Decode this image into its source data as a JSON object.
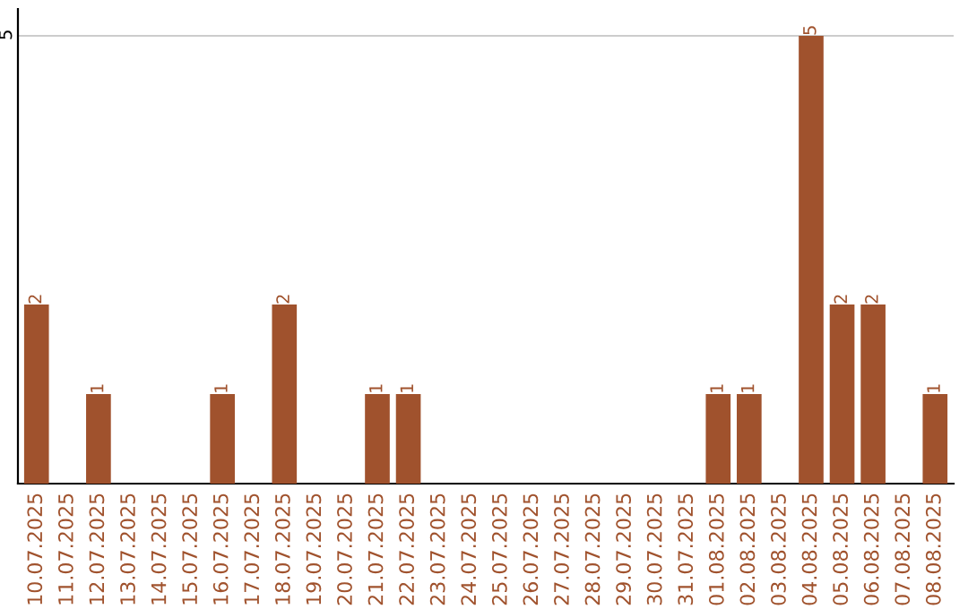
{
  "chart_data": {
    "type": "bar",
    "categories": [
      "10.07.2025",
      "11.07.2025",
      "12.07.2025",
      "13.07.2025",
      "14.07.2025",
      "15.07.2025",
      "16.07.2025",
      "17.07.2025",
      "18.07.2025",
      "19.07.2025",
      "20.07.2025",
      "21.07.2025",
      "22.07.2025",
      "23.07.2025",
      "24.07.2025",
      "25.07.2025",
      "26.07.2025",
      "27.07.2025",
      "28.07.2025",
      "29.07.2025",
      "30.07.2025",
      "31.07.2025",
      "01.08.2025",
      "02.08.2025",
      "03.08.2025",
      "04.08.2025",
      "05.08.2025",
      "06.08.2025",
      "07.08.2025",
      "08.08.2025"
    ],
    "series": [
      {
        "color": "#a0522d",
        "values": [
          2,
          0,
          1,
          0,
          0,
          0,
          1,
          0,
          2,
          0,
          0,
          1,
          1,
          0,
          0,
          0,
          0,
          0,
          0,
          0,
          0,
          0,
          1,
          1,
          0,
          5,
          2,
          2,
          0,
          1
        ],
        "value_labels": [
          "2",
          null,
          "1",
          null,
          null,
          null,
          "1",
          null,
          "2",
          null,
          null,
          "1",
          "1",
          null,
          null,
          null,
          null,
          null,
          null,
          null,
          null,
          null,
          "1",
          "1",
          null,
          "5",
          "2",
          "2",
          null,
          "1"
        ]
      }
    ],
    "ylim": [
      0,
      5.3
    ],
    "yticks": [
      5
    ],
    "grid": "y",
    "legend": false
  }
}
